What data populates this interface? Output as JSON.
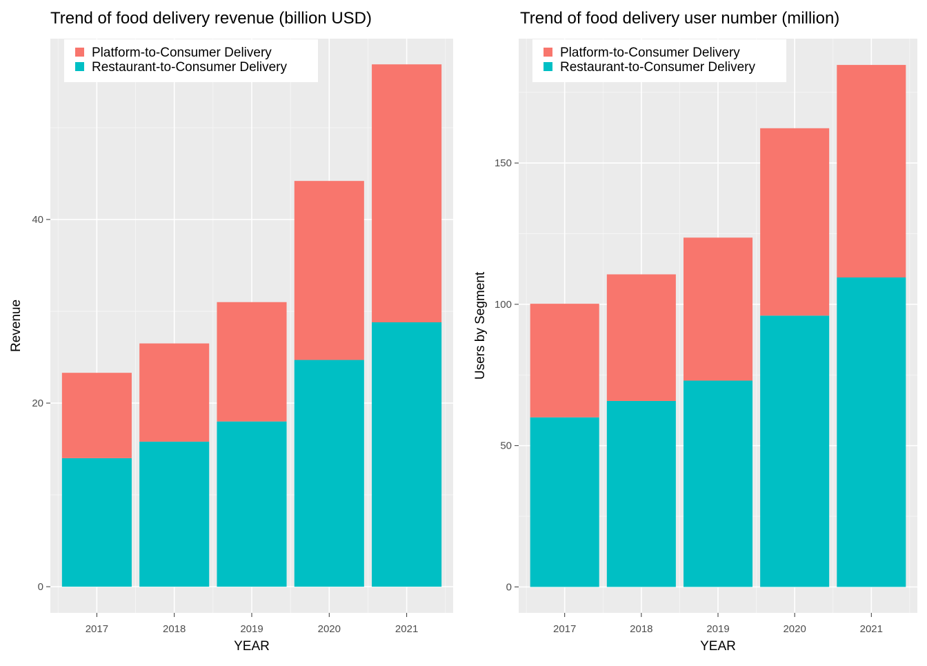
{
  "chart_data": [
    {
      "type": "bar",
      "stacked": true,
      "title": "Trend of food delivery revenue (billion USD)",
      "xlabel": "YEAR",
      "ylabel": "Revenue",
      "categories": [
        "2017",
        "2018",
        "2019",
        "2020",
        "2021"
      ],
      "series": [
        {
          "name": "Restaurant-to-Consumer Delivery",
          "color": "#00BFC4",
          "values": [
            14.0,
            15.8,
            18.0,
            24.7,
            28.8
          ]
        },
        {
          "name": "Platform-to-Consumer Delivery",
          "color": "#F8766D",
          "values": [
            9.3,
            10.7,
            13.0,
            19.5,
            28.1
          ]
        }
      ],
      "yticks": [
        0,
        20,
        40
      ],
      "ylim": [
        -2.85,
        59.7
      ],
      "grid": true,
      "legend": "top-left, inside"
    },
    {
      "type": "bar",
      "stacked": true,
      "title": "Trend of food delivery user number (million)",
      "xlabel": "YEAR",
      "ylabel": "Users by Segment",
      "categories": [
        "2017",
        "2018",
        "2019",
        "2020",
        "2021"
      ],
      "series": [
        {
          "name": "Restaurant-to-Consumer Delivery",
          "color": "#00BFC4",
          "values": [
            60.0,
            65.8,
            73.0,
            96.0,
            109.5
          ]
        },
        {
          "name": "Platform-to-Consumer Delivery",
          "color": "#F8766D",
          "values": [
            40.2,
            44.8,
            50.6,
            66.3,
            75.2
          ]
        }
      ],
      "yticks": [
        0,
        50,
        100,
        150
      ],
      "ylim": [
        -9.18,
        194.0
      ],
      "grid": true,
      "legend": "top-left, inside"
    }
  ]
}
